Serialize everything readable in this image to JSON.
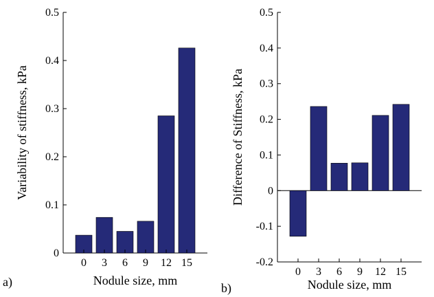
{
  "chart_data": [
    {
      "type": "bar",
      "panel_label": "a)",
      "categories": [
        "0",
        "3",
        "6",
        "9",
        "12",
        "15"
      ],
      "values": [
        0.037,
        0.074,
        0.045,
        0.066,
        0.285,
        0.426
      ],
      "xlabel": "Nodule size, mm",
      "ylabel": "Variability of stiffness, kPa",
      "ylim": [
        0,
        0.5
      ],
      "yticks": [
        "0",
        "0.1",
        "0.2",
        "0.3",
        "0.4",
        "0.5"
      ],
      "grid": false,
      "bar_color": "#252a78"
    },
    {
      "type": "bar",
      "panel_label": "b)",
      "categories": [
        "0",
        "3",
        "6",
        "9",
        "12",
        "15"
      ],
      "values": [
        -0.128,
        0.236,
        0.077,
        0.078,
        0.211,
        0.242
      ],
      "xlabel": "Nodule size, mm",
      "ylabel": "Difference of Stiffness, kPa",
      "ylim": [
        -0.2,
        0.5
      ],
      "yticks": [
        "-0.2",
        "-0.1",
        "0",
        "0.1",
        "0.2",
        "0.3",
        "0.4",
        "0.5"
      ],
      "grid": false,
      "bar_color": "#252a78"
    }
  ]
}
